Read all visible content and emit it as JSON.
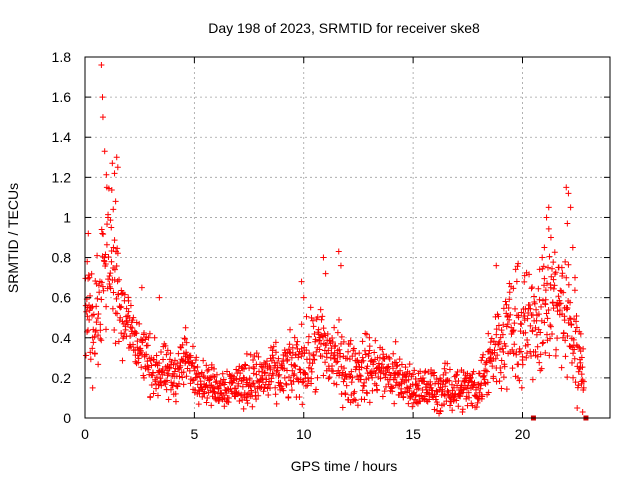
{
  "chart_data": {
    "type": "scatter",
    "title": "Day 198 of 2023, SRMTID for receiver ske8",
    "xlabel": "GPS time / hours",
    "ylabel": "SRMTID / TECUs",
    "xlim": [
      0,
      24
    ],
    "ylim": [
      0,
      1.8
    ],
    "xticks": [
      0,
      5,
      10,
      15,
      20
    ],
    "xtick_labels": [
      "0",
      "5",
      "10",
      "15",
      "20"
    ],
    "yticks": [
      0,
      0.2,
      0.4,
      0.6,
      0.8,
      1.0,
      1.2,
      1.4,
      1.6,
      1.8
    ],
    "ytick_labels": [
      "0",
      "0.2",
      "0.4",
      "0.6",
      "0.8",
      "1",
      "1.2",
      "1.4",
      "1.6",
      "1.8"
    ],
    "grid": true,
    "marker": "plus",
    "color": "#ff0000",
    "series": [
      {
        "name": "SRMTID",
        "profile": [
          [
            0.0,
            0.55,
            0.25
          ],
          [
            0.4,
            0.45,
            0.25
          ],
          [
            0.8,
            0.75,
            0.4
          ],
          [
            1.2,
            0.85,
            0.4
          ],
          [
            1.6,
            0.6,
            0.3
          ],
          [
            2.0,
            0.45,
            0.2
          ],
          [
            2.5,
            0.35,
            0.2
          ],
          [
            3.0,
            0.25,
            0.15
          ],
          [
            4.0,
            0.2,
            0.15
          ],
          [
            4.6,
            0.3,
            0.15
          ],
          [
            5.0,
            0.22,
            0.12
          ],
          [
            6.0,
            0.15,
            0.1
          ],
          [
            7.0,
            0.17,
            0.12
          ],
          [
            8.0,
            0.2,
            0.15
          ],
          [
            9.0,
            0.22,
            0.15
          ],
          [
            10.0,
            0.28,
            0.2
          ],
          [
            10.8,
            0.35,
            0.25
          ],
          [
            11.5,
            0.3,
            0.2
          ],
          [
            12.0,
            0.22,
            0.18
          ],
          [
            13.0,
            0.25,
            0.18
          ],
          [
            14.0,
            0.22,
            0.15
          ],
          [
            15.0,
            0.15,
            0.12
          ],
          [
            16.0,
            0.14,
            0.12
          ],
          [
            17.0,
            0.15,
            0.12
          ],
          [
            18.0,
            0.15,
            0.12
          ],
          [
            18.5,
            0.3,
            0.2
          ],
          [
            19.0,
            0.4,
            0.25
          ],
          [
            19.5,
            0.45,
            0.3
          ],
          [
            20.0,
            0.4,
            0.3
          ],
          [
            20.5,
            0.5,
            0.3
          ],
          [
            21.0,
            0.55,
            0.35
          ],
          [
            21.5,
            0.6,
            0.35
          ],
          [
            22.0,
            0.5,
            0.35
          ],
          [
            22.5,
            0.35,
            0.25
          ],
          [
            22.8,
            0.25,
            0.15
          ]
        ],
        "points": [
          [
            0.15,
            0.92
          ],
          [
            0.1,
            0.78
          ],
          [
            0.2,
            0.7
          ],
          [
            0.35,
            0.15
          ],
          [
            0.45,
            0.32
          ],
          [
            0.75,
            1.76
          ],
          [
            0.8,
            1.6
          ],
          [
            0.82,
            1.5
          ],
          [
            0.9,
            1.33
          ],
          [
            1.0,
            1.15
          ],
          [
            1.05,
            1.0
          ],
          [
            1.25,
            1.27
          ],
          [
            1.35,
            1.22
          ],
          [
            1.45,
            1.3
          ],
          [
            1.5,
            1.25
          ],
          [
            1.4,
            1.08
          ],
          [
            1.2,
            0.95
          ],
          [
            1.3,
            0.85
          ],
          [
            2.6,
            0.65
          ],
          [
            3.4,
            0.6
          ],
          [
            4.6,
            0.45
          ],
          [
            7.4,
            0.32
          ],
          [
            8.5,
            0.35
          ],
          [
            9.5,
            0.35
          ],
          [
            9.9,
            0.68
          ],
          [
            10.0,
            0.6
          ],
          [
            10.9,
            0.8
          ],
          [
            11.0,
            0.72
          ],
          [
            11.6,
            0.83
          ],
          [
            11.7,
            0.76
          ],
          [
            13.0,
            0.4
          ],
          [
            14.2,
            0.38
          ],
          [
            18.8,
            0.76
          ],
          [
            19.8,
            0.77
          ],
          [
            20.1,
            0.71
          ],
          [
            20.9,
            0.8
          ],
          [
            21.0,
            0.85
          ],
          [
            21.1,
            1.0
          ],
          [
            21.2,
            1.05
          ],
          [
            21.3,
            0.9
          ],
          [
            21.8,
            0.75
          ],
          [
            22.0,
            1.15
          ],
          [
            22.1,
            1.12
          ],
          [
            22.2,
            1.05
          ],
          [
            22.05,
            0.97
          ],
          [
            22.3,
            0.85
          ],
          [
            22.4,
            0.7
          ],
          [
            22.6,
            0.35
          ],
          [
            22.7,
            0.17
          ],
          [
            22.8,
            0.15
          ],
          [
            22.5,
            0.05
          ],
          [
            22.75,
            0.03
          ]
        ],
        "outliers": [
          [
            20.5,
            0.0
          ],
          [
            22.9,
            0.0
          ]
        ]
      }
    ]
  }
}
